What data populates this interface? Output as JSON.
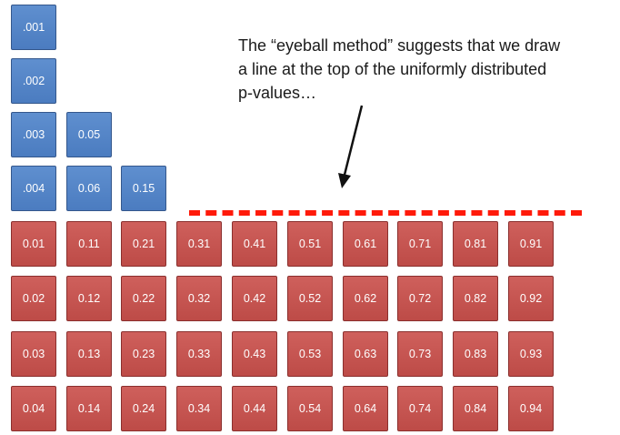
{
  "annotation": {
    "line1": "The “eyeball method” suggests that we draw",
    "line2": "a line at the top of the uniformly distributed",
    "line3": "p-values…"
  },
  "colors": {
    "significant_box": "#4f81bd",
    "uniform_box": "#c0504d",
    "threshold_line": "#ff1a0a",
    "text": "#1a1a1a"
  },
  "significant_columns": [
    [
      ".001",
      ".002",
      ".003",
      ".004"
    ],
    [
      "0.05",
      "0.06"
    ],
    [
      "0.15"
    ]
  ],
  "uniform_rows": [
    [
      "0.01",
      "0.11",
      "0.21",
      "0.31",
      "0.41",
      "0.51",
      "0.61",
      "0.71",
      "0.81",
      "0.91"
    ],
    [
      "0.02",
      "0.12",
      "0.22",
      "0.32",
      "0.42",
      "0.52",
      "0.62",
      "0.72",
      "0.82",
      "0.92"
    ],
    [
      "0.03",
      "0.13",
      "0.23",
      "0.33",
      "0.43",
      "0.53",
      "0.63",
      "0.73",
      "0.83",
      "0.93"
    ],
    [
      "0.04",
      "0.14",
      "0.24",
      "0.34",
      "0.44",
      "0.54",
      "0.64",
      "0.74",
      "0.84",
      "0.94"
    ]
  ]
}
